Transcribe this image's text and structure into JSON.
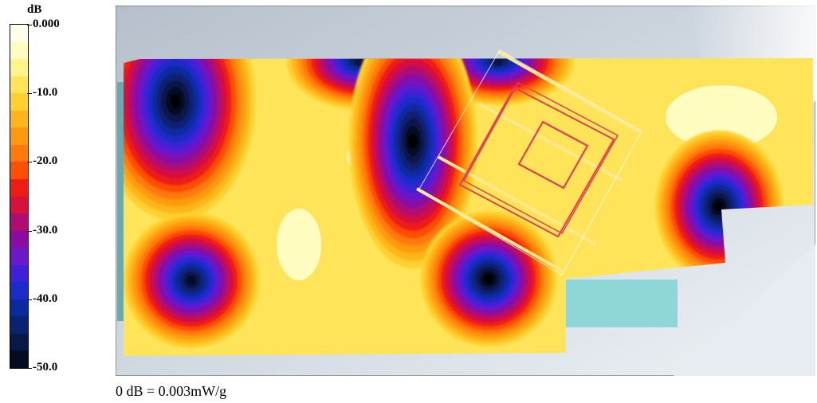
{
  "chart_data": {
    "type": "heatmap",
    "unit_label": "dB",
    "colorbar": {
      "ticks": [
        "0.000",
        "-10.0",
        "-20.0",
        "-30.0",
        "-40.0",
        "-50.0"
      ],
      "range": [
        -50,
        0
      ],
      "levels": [
        {
          "value": 0,
          "color": "#ffffe8"
        },
        {
          "value": -2.5,
          "color": "#fffcc0"
        },
        {
          "value": -5,
          "color": "#fff48a"
        },
        {
          "value": -7.5,
          "color": "#ffe45a"
        },
        {
          "value": -10,
          "color": "#ffd02e"
        },
        {
          "value": -12.5,
          "color": "#ffb51a"
        },
        {
          "value": -15,
          "color": "#ff9a10"
        },
        {
          "value": -17.5,
          "color": "#ff7a08"
        },
        {
          "value": -20,
          "color": "#ff4e06"
        },
        {
          "value": -22.5,
          "color": "#ee1c12"
        },
        {
          "value": -25,
          "color": "#d6113c"
        },
        {
          "value": -27.5,
          "color": "#b00d72"
        },
        {
          "value": -30,
          "color": "#8a0aa2"
        },
        {
          "value": -32.5,
          "color": "#6a18c8"
        },
        {
          "value": -35,
          "color": "#3e20d8"
        },
        {
          "value": -37.5,
          "color": "#1c2cc8"
        },
        {
          "value": -40,
          "color": "#0a2aa0"
        },
        {
          "value": -42.5,
          "color": "#0a2272"
        },
        {
          "value": -45,
          "color": "#081848"
        },
        {
          "value": -47.5,
          "color": "#040c22"
        },
        {
          "value": -50,
          "color": "#000000"
        }
      ]
    },
    "minima": [
      {
        "name": "upper-left",
        "level": -50
      },
      {
        "name": "top-center-left",
        "level": -47
      },
      {
        "name": "top-center-right",
        "level": -46
      },
      {
        "name": "center",
        "level": -50
      },
      {
        "name": "lower-left",
        "level": -48
      },
      {
        "name": "lower-center",
        "level": -50
      },
      {
        "name": "right",
        "level": -50
      }
    ],
    "caption": "0 dB = 0.003mW/g"
  }
}
